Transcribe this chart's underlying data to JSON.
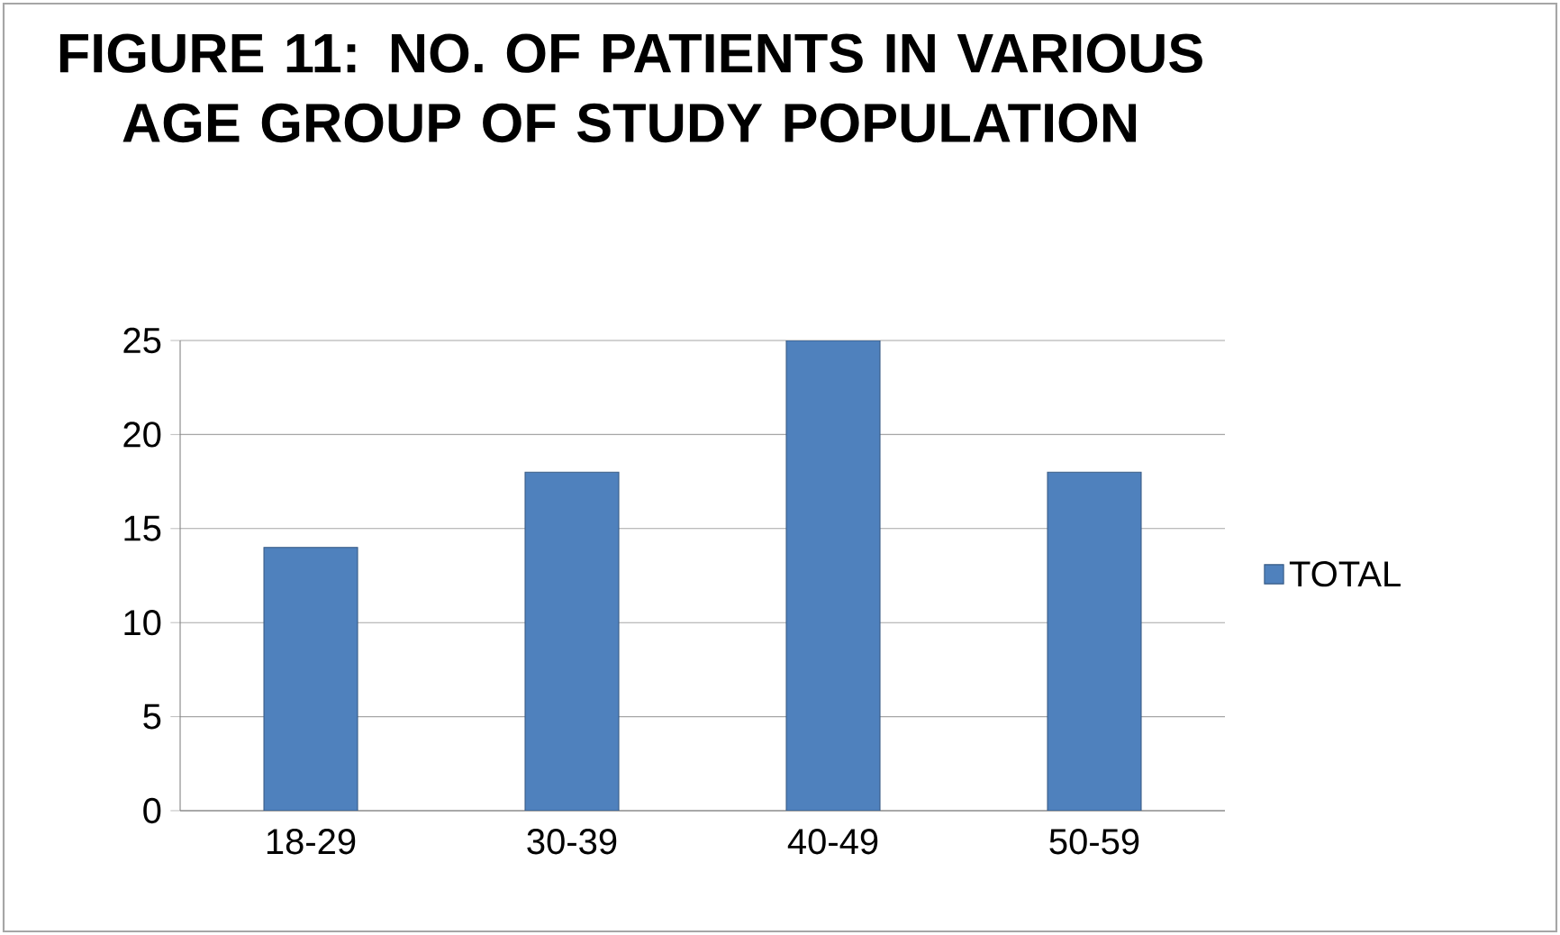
{
  "chart_data": {
    "type": "bar",
    "title": "FIGURE 11: NO. OF PATIENTS IN VARIOUS AGE GROUP OF STUDY POPULATION",
    "categories": [
      "18-29",
      "30-39",
      "40-49",
      "50-59"
    ],
    "series": [
      {
        "name": "TOTAL",
        "color": "#4f81bd",
        "values": [
          14,
          18,
          25,
          18
        ]
      }
    ],
    "ylim": [
      0,
      25
    ],
    "yticks": [
      0,
      5,
      10,
      15,
      20,
      25
    ],
    "grid": "y",
    "legend": "right"
  }
}
